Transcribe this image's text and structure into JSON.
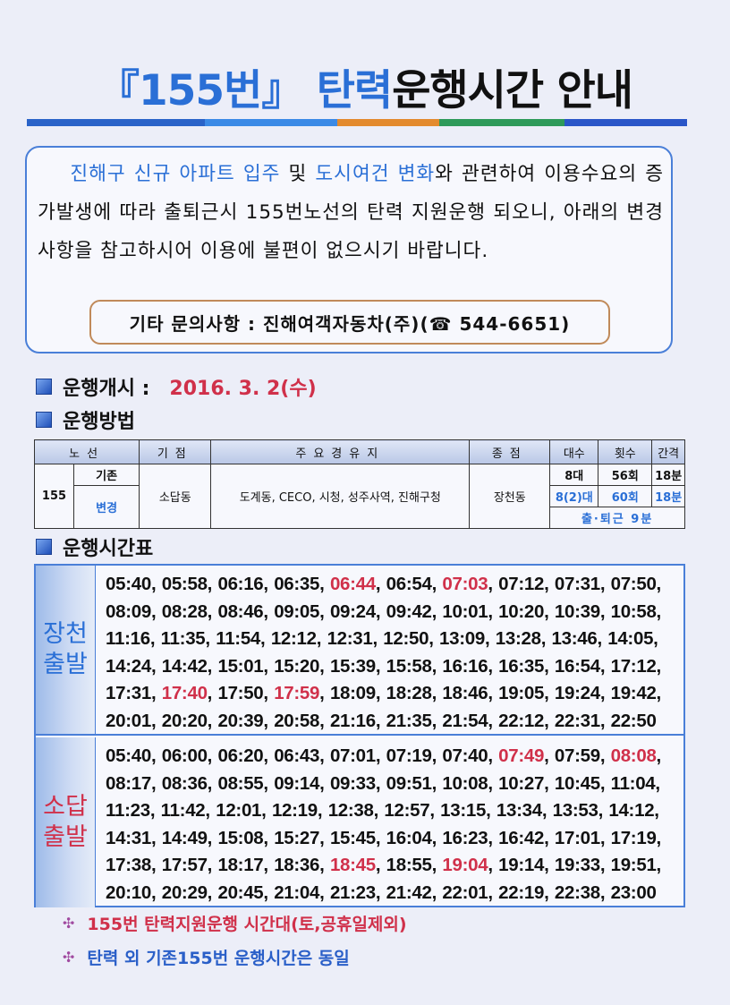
{
  "title": {
    "part1": "『155번』 탄력",
    "part2": "운행시간 안내"
  },
  "colors": {
    "accent_blue": "#2a6fd6",
    "highlight_red": "#d0304a",
    "bar": [
      "#2a63c8",
      "#3b8ae6",
      "#e38a2e",
      "#2e9a5a",
      "#2a56c8"
    ]
  },
  "intro": {
    "segments": [
      {
        "text": "진해구 신규 아파트 입주",
        "hl": true
      },
      {
        "text": " 및 ",
        "hl": false
      },
      {
        "text": "도시여건 변화",
        "hl": true
      },
      {
        "text": "와 관련하여 이용수요의 증가발생에 따라 출퇴근시 155번노선의 탄력 지원운행 되오니, 아래의 변경사항을 참고하시어 이용에 불편이 없으시기 바랍니다.",
        "hl": false
      }
    ],
    "contact": "기타 문의사항 : 진해여객자동차(주)(☎ 544-6651)"
  },
  "start": {
    "label": "운행개시 :",
    "date": "2016. 3. 2(수)"
  },
  "method": {
    "label": "운행방법"
  },
  "route_table": {
    "headers": [
      "노선",
      "기점",
      "주요경유지",
      "종점",
      "대수",
      "횟수",
      "간격"
    ],
    "route": "155",
    "existing": "기존",
    "changed": "변경",
    "origin": "소답동",
    "via": "도계동, CECO, 시청, 성주사역, 진해구청",
    "terminus": "장천동",
    "existing_vals": [
      "8대",
      "56회",
      "18분"
    ],
    "changed_vals": [
      "8(2)대",
      "60회",
      "18분"
    ],
    "rush_note": "출·퇴근 9분"
  },
  "timetable": {
    "label": "운행시간표",
    "blocks": [
      {
        "origin_line1": "장천",
        "origin_line2": "출발",
        "times": [
          "05:40",
          "05:58",
          "06:16",
          "06:35",
          "06:44",
          "06:54",
          "07:03",
          "07:12",
          "07:31",
          "07:50",
          "08:09",
          "08:28",
          "08:46",
          "09:05",
          "09:24",
          "09:42",
          "10:01",
          "10:20",
          "10:39",
          "10:58",
          "11:16",
          "11:35",
          "11:54",
          "12:12",
          "12:31",
          "12:50",
          "13:09",
          "13:28",
          "13:46",
          "14:05",
          "14:24",
          "14:42",
          "15:01",
          "15:20",
          "15:39",
          "15:58",
          "16:16",
          "16:35",
          "16:54",
          "17:12",
          "17:31",
          "17:40",
          "17:50",
          "17:59",
          "18:09",
          "18:28",
          "18:46",
          "19:05",
          "19:24",
          "19:42",
          "20:01",
          "20:20",
          "20:39",
          "20:58",
          "21:16",
          "21:35",
          "21:54",
          "22:12",
          "22:31",
          "22:50"
        ],
        "highlighted": [
          "06:44",
          "07:03",
          "17:40",
          "17:59"
        ]
      },
      {
        "origin_line1": "소답",
        "origin_line2": "출발",
        "times": [
          "05:40",
          "06:00",
          "06:20",
          "06:43",
          "07:01",
          "07:19",
          "07:40",
          "07:49",
          "07:59",
          "08:08",
          "08:17",
          "08:36",
          "08:55",
          "09:14",
          "09:33",
          "09:51",
          "10:08",
          "10:27",
          "10:45",
          "11:04",
          "11:23",
          "11:42",
          "12:01",
          "12:19",
          "12:38",
          "12:57",
          "13:15",
          "13:34",
          "13:53",
          "14:12",
          "14:31",
          "14:49",
          "15:08",
          "15:27",
          "15:45",
          "16:04",
          "16:23",
          "16:42",
          "17:01",
          "17:19",
          "17:38",
          "17:57",
          "18:17",
          "18:36",
          "18:45",
          "18:55",
          "19:04",
          "19:14",
          "19:33",
          "19:51",
          "20:10",
          "20:29",
          "20:45",
          "21:04",
          "21:23",
          "21:42",
          "22:01",
          "22:19",
          "22:38",
          "23:00"
        ],
        "highlighted": [
          "07:49",
          "08:08",
          "18:45",
          "19:04"
        ]
      }
    ]
  },
  "notes": [
    {
      "icon": "clover-bullet-icon",
      "text": "155번 탄력지원운행 시간대(토,공휴일제외)"
    },
    {
      "icon": "clover-bullet-icon",
      "text": "탄력 외 기존155번 운행시간은 동일"
    }
  ]
}
